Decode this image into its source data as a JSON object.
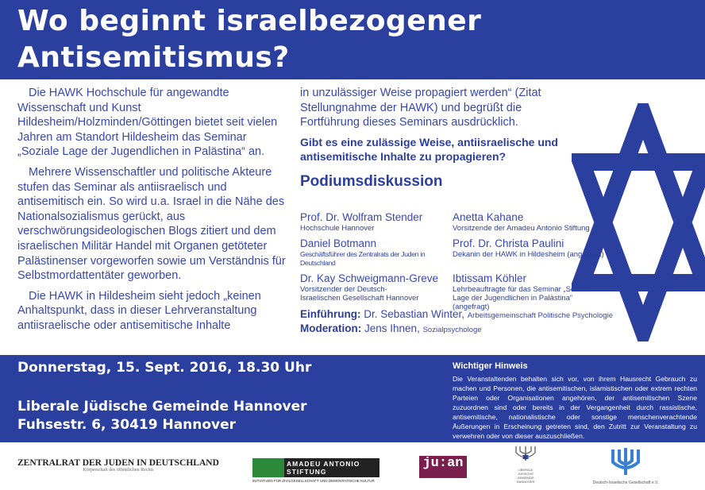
{
  "title_lines": [
    "Wo beginnt israelbezogener",
    "Antisemitismus?"
  ],
  "left_paragraphs": [
    "Die HAWK Hochschule für angewandte Wissenschaft und Kunst Hildesheim/Holzminden/Göttingen bietet seit vielen Jahren am Standort Hildesheim das Seminar „Soziale Lage der Jugendlichen in Palästina“ an.",
    "Mehrere Wissenschaftler und politische Akteure stufen das Seminar als antiisraelisch und antisemitisch ein. So wird u.a. Israel in die Nähe des Nationalsozialismus gerückt, aus verschwörungsideologischen Blogs zitiert und dem israelischen Militär Handel mit Organen getöteter Palästinenser vorgeworfen sowie um Verständnis für Selbstmordattentäter geworben.",
    "Die HAWK in Hildesheim sieht jedoch „keinen Anhaltspunkt, dass in dieser Lehrveranstaltung antiisraelische oder antisemitische Inhalte"
  ],
  "mid_paragraph": "in unzulässiger Weise propagiert werden“ (Zitat Stellungnahme der HAWK) und begrüßt die Fortführung dieses Seminars ausdrücklich.",
  "question": "Gibt es eine zulässige Weise, antiisraelische und antisemitische Inhalte zu propagieren?",
  "podium_title": "Podiumsdiskussion",
  "speakers": [
    {
      "name": "Prof. Dr. Wolfram Stender",
      "role": "Hochschule Hannover"
    },
    {
      "name": "Anetta Kahane",
      "role": "Vorsitzende der Amadeu Antonio Stiftung"
    },
    {
      "name": "Daniel Botmann",
      "role": "Geschäftsführer des Zentralrats der Juden in Deutschland"
    },
    {
      "name": "Prof. Dr. Christa Paulini",
      "role": "Dekanin der HAWK in Hildesheim (angefragt)"
    },
    {
      "name": "Dr. Kay Schweigmann-Greve",
      "role": "Vorsitzender der Deutsch-Israelischen Gesellschaft Hannover"
    },
    {
      "name": "Ibtissam Köhler",
      "role": "Lehrbeauftragte für das Seminar „Soziale Lage der Jugendlichen in Palästina“ (angefragt)"
    }
  ],
  "intro": {
    "label": "Einführung:",
    "name": "Dr. Sebastian Winter,",
    "affiliation": "Arbeitsgemeinschaft Politische Psychologie"
  },
  "moderation": {
    "label": "Moderation:",
    "name": "Jens Ihnen,",
    "affiliation": "Sozialpsychologe"
  },
  "event": {
    "date": "Donnerstag, 15. Sept. 2016, 18.30 Uhr",
    "venue_lines": [
      "Liberale Jüdische Gemeinde Hannover",
      "Fuhsestr. 6, 30419 Hannover"
    ]
  },
  "notice": {
    "title": "Wichtiger Hinweis",
    "text": "Die Veranstaltenden behalten sich vor, von ihrem Hausrecht Gebrauch zu machen und Personen, die antisemitischen, islamistischen oder extrem rechten Parteien oder Organisationen angehören, der antisemitischen Szene zuzuordnen sind oder bereits in der Vergangenheit durch rassistische, antisemitische, nationalistische oder sonstige menschenverachtende Äußerungen in Erscheinung getreten sind, den Zutritt zur Veranstaltung zu verwehren oder von dieser auszuschließen."
  },
  "logos": {
    "zentralrat": {
      "name": "ZENTRALRAT DER JUDEN IN DEUTSCHLAND",
      "sub": "Körperschaft des öffentlichen Rechts"
    },
    "amadeu": {
      "name": "AMADEU ANTONIO STIFTUNG",
      "sub": "INITIATIVEN FÜR ZIVILGESELLSCHAFT UND DEMOKRATISCHE KULTUR"
    },
    "juan": {
      "name": "ju:an"
    },
    "ljg": {
      "name": "LIBERALE JÜDISCHE GEMEINDE HANNOVER"
    },
    "dig": {
      "name": "Deutsch-Israelische Gesellschaft e.V."
    }
  },
  "colors": {
    "primary": "#2b3f9e",
    "text": "#3747b0",
    "background": "#ffffff"
  }
}
